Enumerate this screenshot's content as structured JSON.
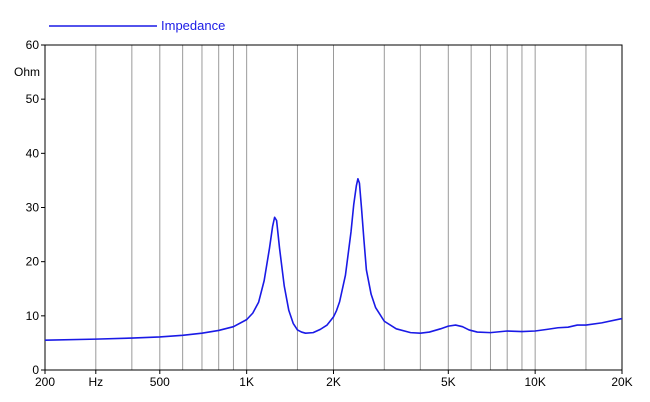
{
  "chart_data": {
    "type": "line",
    "title": "",
    "xlabel": "",
    "ylabel": "Ohm",
    "x_scale": "log",
    "xlim": [
      200,
      20000
    ],
    "ylim": [
      0,
      60
    ],
    "grid": {
      "vertical": true,
      "horizontal": false
    },
    "legend": {
      "placement": "top-left",
      "entries": [
        "Impedance"
      ]
    },
    "x_tick_labels": [
      {
        "value": 200,
        "label": "200"
      },
      {
        "value": 300,
        "label": "Hz"
      },
      {
        "value": 500,
        "label": "500"
      },
      {
        "value": 1000,
        "label": "1K"
      },
      {
        "value": 2000,
        "label": "2K"
      },
      {
        "value": 5000,
        "label": "5K"
      },
      {
        "value": 10000,
        "label": "10K"
      },
      {
        "value": 20000,
        "label": "20K"
      }
    ],
    "x_gridlines": [
      300,
      400,
      500,
      600,
      700,
      800,
      900,
      1000,
      1500,
      2000,
      3000,
      4000,
      5000,
      6000,
      7000,
      8000,
      9000,
      10000,
      15000
    ],
    "y_ticks": [
      0,
      10,
      20,
      30,
      40,
      50,
      60
    ],
    "colors": {
      "series": "#1a1ae6",
      "grid": "#9a9a9a",
      "axis": "#000000"
    },
    "series": [
      {
        "name": "Impedance",
        "x": [
          200,
          300,
          400,
          500,
          600,
          700,
          800,
          900,
          1000,
          1050,
          1100,
          1150,
          1200,
          1230,
          1250,
          1270,
          1300,
          1350,
          1400,
          1450,
          1500,
          1550,
          1600,
          1700,
          1800,
          1900,
          2000,
          2050,
          2100,
          2200,
          2300,
          2350,
          2400,
          2430,
          2460,
          2500,
          2550,
          2600,
          2700,
          2800,
          3000,
          3300,
          3700,
          4000,
          4300,
          4700,
          5000,
          5300,
          5600,
          5900,
          6300,
          7000,
          8000,
          9000,
          10000,
          11000,
          12000,
          13000,
          14000,
          15000,
          17000,
          20000
        ],
        "values": [
          5.5,
          5.7,
          5.9,
          6.1,
          6.4,
          6.8,
          7.3,
          8.0,
          9.3,
          10.5,
          12.5,
          16.5,
          22.5,
          26.5,
          28.2,
          27.6,
          22.5,
          15.5,
          11.0,
          8.6,
          7.4,
          7.0,
          6.8,
          6.9,
          7.5,
          8.3,
          9.8,
          11.0,
          12.6,
          17.5,
          25.5,
          30.5,
          34.0,
          35.3,
          34.5,
          30.0,
          24.0,
          18.5,
          14.0,
          11.5,
          9.0,
          7.6,
          6.9,
          6.8,
          7.0,
          7.6,
          8.1,
          8.3,
          8.0,
          7.4,
          7.0,
          6.9,
          7.2,
          7.1,
          7.2,
          7.5,
          7.8,
          7.9,
          8.3,
          8.3,
          8.7,
          9.5
        ]
      }
    ]
  }
}
